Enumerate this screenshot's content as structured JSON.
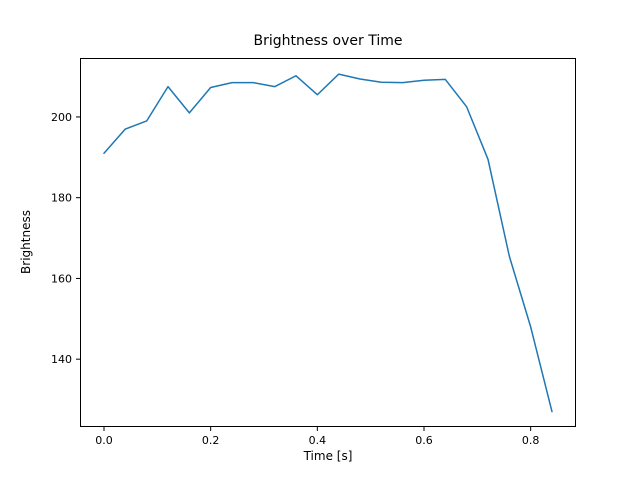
{
  "figure": {
    "title": "Brightness over Time",
    "xlabel": "Time [s]",
    "ylabel": "Brightness"
  },
  "chart_data": {
    "type": "line",
    "title": "Brightness over Time",
    "xlabel": "Time [s]",
    "ylabel": "Brightness",
    "x": [
      0.0,
      0.04,
      0.08,
      0.12,
      0.16,
      0.2,
      0.24,
      0.28,
      0.32,
      0.36,
      0.4,
      0.44,
      0.48,
      0.52,
      0.56,
      0.6,
      0.64,
      0.68,
      0.72,
      0.76,
      0.8,
      0.84
    ],
    "y": [
      191,
      197,
      199,
      207.5,
      201,
      207.3,
      208.5,
      208.5,
      207.5,
      210.2,
      205.5,
      210.6,
      209.4,
      208.6,
      208.5,
      209.1,
      209.3,
      202.5,
      189.5,
      165.5,
      148,
      127
    ],
    "xlim": [
      -0.045,
      0.885
    ],
    "ylim": [
      123.2,
      214.6
    ],
    "xticks": [
      0.0,
      0.2,
      0.4,
      0.6,
      0.8
    ],
    "xtick_labels": [
      "0.0",
      "0.2",
      "0.4",
      "0.6",
      "0.8"
    ],
    "yticks": [
      140,
      160,
      180,
      200
    ],
    "ytick_labels": [
      "140",
      "160",
      "180",
      "200"
    ],
    "grid": false,
    "legend_position": "none",
    "line_color": "#1f77b4",
    "line_width": 1.5,
    "axis_color": "#000000",
    "background_color": "#ffffff"
  }
}
